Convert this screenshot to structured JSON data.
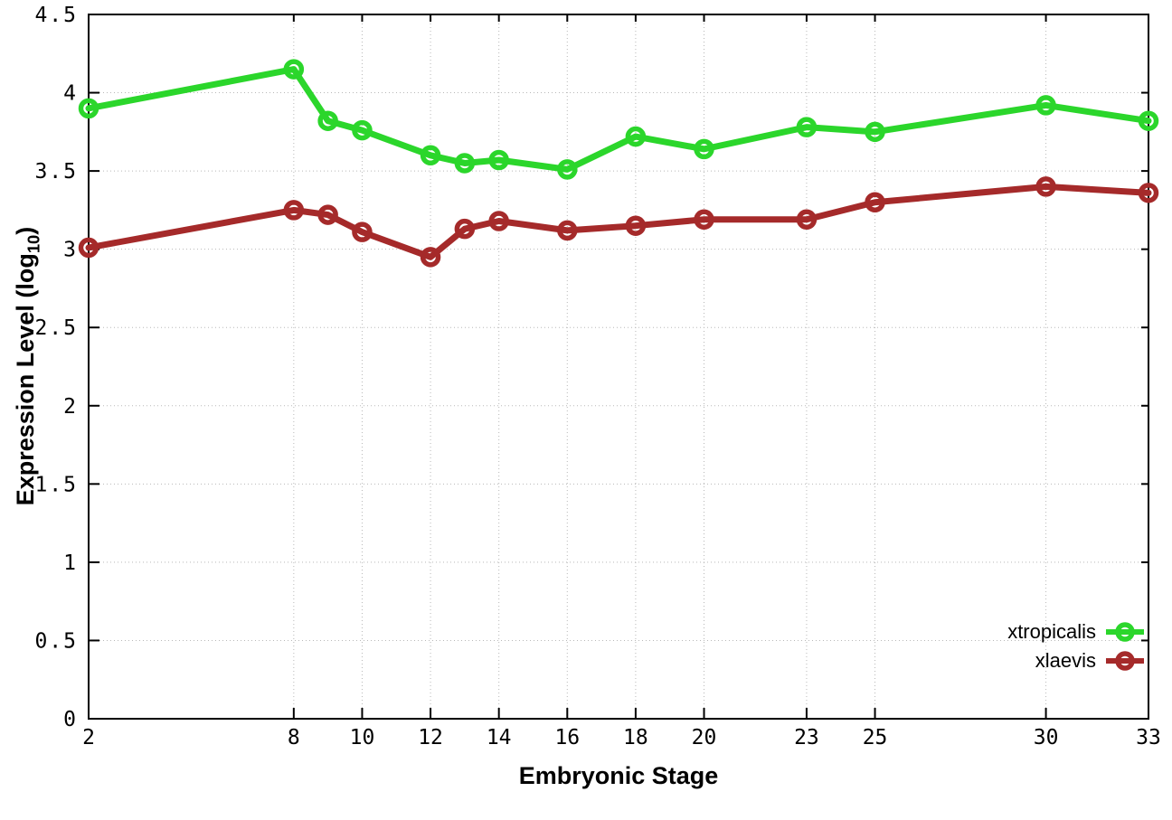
{
  "chart_data": {
    "type": "line",
    "title": "",
    "xlabel": "Embryonic Stage",
    "ylabel": "Expression Level (log10)",
    "ylabel_display": {
      "main": "Expression Level (log",
      "sub": "10",
      "close": ")"
    },
    "x": [
      2,
      8,
      9,
      10,
      12,
      13,
      14,
      16,
      18,
      20,
      23,
      25,
      30,
      33
    ],
    "xlim": [
      2,
      33
    ],
    "ylim": [
      0,
      4.5
    ],
    "xticks": [
      2,
      8,
      10,
      12,
      14,
      16,
      18,
      20,
      23,
      25,
      30,
      33
    ],
    "yticks": [
      "0",
      "0.5",
      "1",
      "1.5",
      "2",
      "2.5",
      "3",
      "3.5",
      "4",
      "4.5"
    ],
    "grid": true,
    "legend_position": "bottom-right",
    "series": [
      {
        "name": "xtropicalis",
        "color": "#2bd62b",
        "values": [
          3.9,
          4.15,
          3.82,
          3.76,
          3.6,
          3.55,
          3.57,
          3.51,
          3.72,
          3.64,
          3.78,
          3.75,
          3.92,
          3.82
        ]
      },
      {
        "name": "xlaevis",
        "color": "#a52a2a",
        "values": [
          3.01,
          3.25,
          3.22,
          3.11,
          2.95,
          3.13,
          3.18,
          3.12,
          3.15,
          3.19,
          3.19,
          3.3,
          3.4,
          3.36
        ]
      }
    ],
    "axis_color": "#000000",
    "grid_color": "#b8b8b8"
  }
}
